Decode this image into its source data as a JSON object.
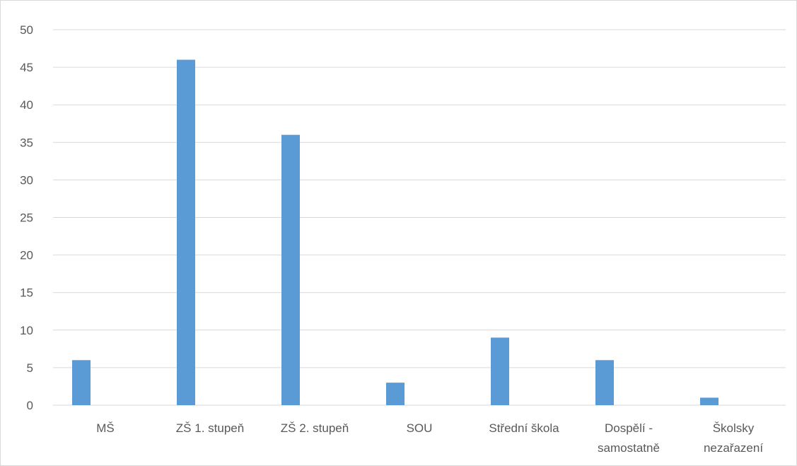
{
  "chart_data": {
    "type": "bar",
    "categories": [
      [
        "MŠ"
      ],
      [
        "ZŠ 1. stupeň"
      ],
      [
        "ZŠ 2. stupeň"
      ],
      [
        "SOU"
      ],
      [
        "Střední škola"
      ],
      [
        "Dospělí -",
        "samostatně"
      ],
      [
        "Školsky",
        "nezařazení"
      ]
    ],
    "series": [
      {
        "values": [
          6,
          46,
          36,
          3,
          9,
          6,
          1
        ],
        "color": "#5b9bd5"
      }
    ],
    "ylim": [
      0,
      50
    ],
    "yticks": [
      0,
      5,
      10,
      15,
      20,
      25,
      30,
      35,
      40,
      45,
      50
    ],
    "grid": true,
    "legend": "none",
    "colors": {
      "grid": "#d9d9d9",
      "axis_text": "#595959",
      "frame": "#d9d9d9"
    }
  }
}
